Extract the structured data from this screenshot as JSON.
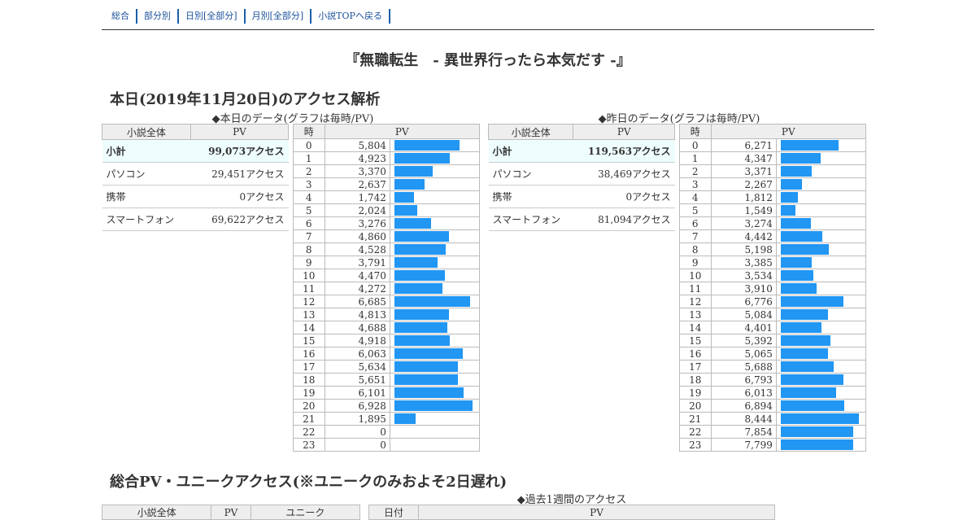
{
  "nav": {
    "items": [
      "総合",
      "部分別",
      "日別[全部分]",
      "月別[全部分]",
      "小説TOPへ戻る"
    ]
  },
  "novel_title": "『無職転生　- 異世界行ったら本気だす -』",
  "today_section": {
    "title": "本日(2019年11月20日)のアクセス解析"
  },
  "today": {
    "subtitle": "◆本日のデータ(グラフは毎時/PV)",
    "summary_headers": [
      "小説全体",
      "PV"
    ],
    "summary_rows": [
      {
        "label": "小計",
        "value": "99,073アクセス"
      },
      {
        "label": "パソコン",
        "value": "29,451アクセス"
      },
      {
        "label": "携帯",
        "value": "0アクセス"
      },
      {
        "label": "スマートフォン",
        "value": "69,622アクセス"
      }
    ],
    "hourly_headers": [
      "時",
      "PV"
    ],
    "hourly": [
      {
        "hour": "0",
        "pv": "5,804",
        "value": 5804
      },
      {
        "hour": "1",
        "pv": "4,923",
        "value": 4923
      },
      {
        "hour": "2",
        "pv": "3,370",
        "value": 3370
      },
      {
        "hour": "3",
        "pv": "2,637",
        "value": 2637
      },
      {
        "hour": "4",
        "pv": "1,742",
        "value": 1742
      },
      {
        "hour": "5",
        "pv": "2,024",
        "value": 2024
      },
      {
        "hour": "6",
        "pv": "3,276",
        "value": 3276
      },
      {
        "hour": "7",
        "pv": "4,860",
        "value": 4860
      },
      {
        "hour": "8",
        "pv": "4,528",
        "value": 4528
      },
      {
        "hour": "9",
        "pv": "3,791",
        "value": 3791
      },
      {
        "hour": "10",
        "pv": "4,470",
        "value": 4470
      },
      {
        "hour": "11",
        "pv": "4,272",
        "value": 4272
      },
      {
        "hour": "12",
        "pv": "6,685",
        "value": 6685
      },
      {
        "hour": "13",
        "pv": "4,813",
        "value": 4813
      },
      {
        "hour": "14",
        "pv": "4,688",
        "value": 4688
      },
      {
        "hour": "15",
        "pv": "4,918",
        "value": 4918
      },
      {
        "hour": "16",
        "pv": "6,063",
        "value": 6063
      },
      {
        "hour": "17",
        "pv": "5,634",
        "value": 5634
      },
      {
        "hour": "18",
        "pv": "5,651",
        "value": 5651
      },
      {
        "hour": "19",
        "pv": "6,101",
        "value": 6101
      },
      {
        "hour": "20",
        "pv": "6,928",
        "value": 6928
      },
      {
        "hour": "21",
        "pv": "1,895",
        "value": 1895
      },
      {
        "hour": "22",
        "pv": "0",
        "value": 0
      },
      {
        "hour": "23",
        "pv": "0",
        "value": 0
      }
    ]
  },
  "yesterday": {
    "subtitle": "◆昨日のデータ(グラフは毎時/PV)",
    "summary_headers": [
      "小説全体",
      "PV"
    ],
    "summary_rows": [
      {
        "label": "小計",
        "value": "119,563アクセス"
      },
      {
        "label": "パソコン",
        "value": "38,469アクセス"
      },
      {
        "label": "携帯",
        "value": "0アクセス"
      },
      {
        "label": "スマートフォン",
        "value": "81,094アクセス"
      }
    ],
    "hourly_headers": [
      "時",
      "PV"
    ],
    "hourly": [
      {
        "hour": "0",
        "pv": "6,271",
        "value": 6271
      },
      {
        "hour": "1",
        "pv": "4,347",
        "value": 4347
      },
      {
        "hour": "2",
        "pv": "3,371",
        "value": 3371
      },
      {
        "hour": "3",
        "pv": "2,267",
        "value": 2267
      },
      {
        "hour": "4",
        "pv": "1,812",
        "value": 1812
      },
      {
        "hour": "5",
        "pv": "1,549",
        "value": 1549
      },
      {
        "hour": "6",
        "pv": "3,274",
        "value": 3274
      },
      {
        "hour": "7",
        "pv": "4,442",
        "value": 4442
      },
      {
        "hour": "8",
        "pv": "5,198",
        "value": 5198
      },
      {
        "hour": "9",
        "pv": "3,385",
        "value": 3385
      },
      {
        "hour": "10",
        "pv": "3,534",
        "value": 3534
      },
      {
        "hour": "11",
        "pv": "3,910",
        "value": 3910
      },
      {
        "hour": "12",
        "pv": "6,776",
        "value": 6776
      },
      {
        "hour": "13",
        "pv": "5,084",
        "value": 5084
      },
      {
        "hour": "14",
        "pv": "4,401",
        "value": 4401
      },
      {
        "hour": "15",
        "pv": "5,392",
        "value": 5392
      },
      {
        "hour": "16",
        "pv": "5,065",
        "value": 5065
      },
      {
        "hour": "17",
        "pv": "5,688",
        "value": 5688
      },
      {
        "hour": "18",
        "pv": "6,793",
        "value": 6793
      },
      {
        "hour": "19",
        "pv": "6,013",
        "value": 6013
      },
      {
        "hour": "20",
        "pv": "6,894",
        "value": 6894
      },
      {
        "hour": "21",
        "pv": "8,444",
        "value": 8444
      },
      {
        "hour": "22",
        "pv": "7,854",
        "value": 7854
      },
      {
        "hour": "23",
        "pv": "7,799",
        "value": 7799
      }
    ]
  },
  "total_section": {
    "title": "総合PV・ユニークアクセス(※ユニークのみおよそ2日遅れ)",
    "weekly_subtitle": "◆過去1週間のアクセス",
    "left_headers": [
      "小説全体",
      "PV",
      "ユニーク"
    ],
    "right_headers": [
      "日付",
      "PV"
    ]
  },
  "colors": {
    "bar": "#2196f3",
    "subtotal_bg": "#eefdfd",
    "header_bg": "#eeeeee",
    "link": "#1a4f9a"
  }
}
